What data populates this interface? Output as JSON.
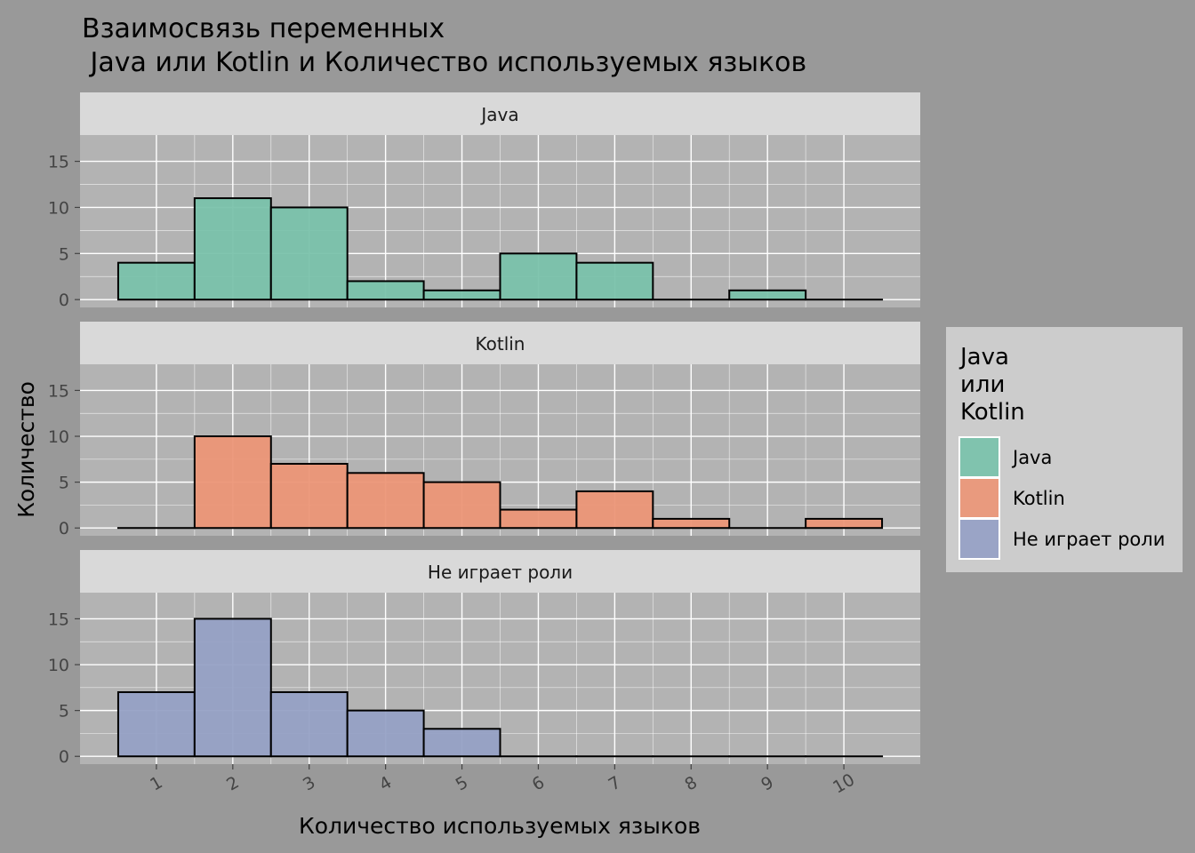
{
  "chart_data": {
    "type": "bar",
    "title_line1": "Взаимосвязь переменных",
    "title_line2": " Java или Kotlin и Количество используемых языков",
    "xlabel": "Количество используемых языков",
    "ylabel": "Количество",
    "categories": [
      "1",
      "2",
      "3",
      "4",
      "5",
      "6",
      "7",
      "8",
      "9",
      "10"
    ],
    "yticks": [
      "0",
      "5",
      "10",
      "15"
    ],
    "ylim": [
      0,
      17
    ],
    "grid": true,
    "legend_position": "right",
    "legend": {
      "title_lines": [
        "Java",
        "или",
        "Kotlin"
      ],
      "entries": [
        "Java",
        "Kotlin",
        "Не играет роли"
      ]
    },
    "series": [
      {
        "name": "Java",
        "color": "#7ac2ab",
        "values": [
          4,
          11,
          10,
          2,
          1,
          5,
          4,
          0,
          1,
          0
        ]
      },
      {
        "name": "Kotlin",
        "color": "#ec9677",
        "values": [
          0,
          10,
          7,
          6,
          5,
          2,
          4,
          1,
          0,
          1
        ]
      },
      {
        "name": "Не играет роли",
        "color": "#96a1c5",
        "values": [
          7,
          15,
          7,
          5,
          3,
          0,
          0,
          0,
          0,
          0
        ]
      }
    ]
  }
}
